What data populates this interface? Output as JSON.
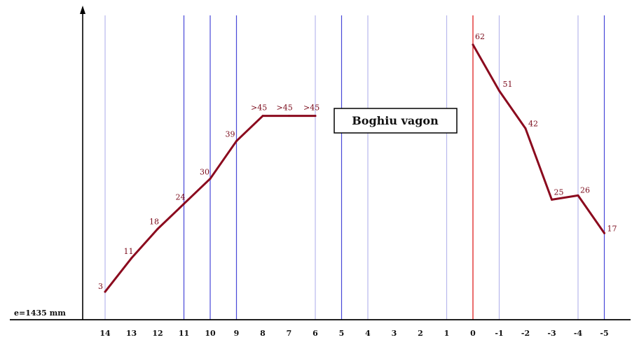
{
  "chart_data": {
    "type": "line",
    "title": "Boghiu vagon",
    "baseline_label": "e=1435 mm",
    "categories": [
      "14",
      "13",
      "12",
      "11",
      "10",
      "9",
      "8",
      "7",
      "6",
      "5",
      "4",
      "3",
      "2",
      "1",
      "0",
      "-1",
      "-2",
      "-3",
      "-4",
      "-5"
    ],
    "series": [
      {
        "values": [
          {
            "x": "14",
            "y": 3,
            "label": "3"
          },
          {
            "x": "13",
            "y": 11,
            "label": "11"
          },
          {
            "x": "12",
            "y": 18,
            "label": "18"
          },
          {
            "x": "11",
            "y": 24,
            "label": "24"
          },
          {
            "x": "10",
            "y": 30,
            "label": "30"
          },
          {
            "x": "9",
            "y": 39,
            "label": "39"
          },
          {
            "x": "8",
            "y": 45,
            "label": ">45"
          },
          {
            "x": "7",
            "y": 45,
            "label": ">45"
          },
          {
            "x": "6",
            "y": 45,
            "label": ">45"
          }
        ]
      },
      {
        "values": [
          {
            "x": "0",
            "y": 62,
            "label": "62"
          },
          {
            "x": "-1",
            "y": 51,
            "label": "51"
          },
          {
            "x": "-2",
            "y": 42,
            "label": "42"
          },
          {
            "x": "-3",
            "y": 25,
            "label": "25"
          },
          {
            "x": "-4",
            "y": 26,
            "label": "26"
          },
          {
            "x": "-5",
            "y": 17,
            "label": "17"
          }
        ]
      }
    ],
    "ylim": [
      0,
      68
    ],
    "grid_lines_at": [
      "14",
      "11",
      "10",
      "9",
      "6",
      "5",
      "4",
      "1",
      "0",
      "-1",
      "-4",
      "-5"
    ],
    "highlight_line_at": "0",
    "colors": {
      "line": "#8b0a1e",
      "grid": "#4848d8",
      "grid_light": "#b7b7ec",
      "highlight": "#e03030",
      "axis": "#000000"
    }
  }
}
